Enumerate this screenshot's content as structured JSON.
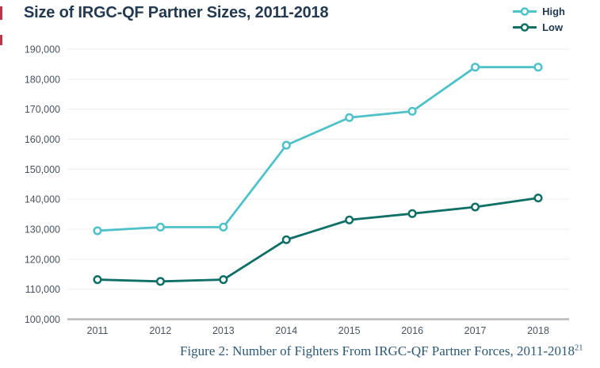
{
  "chart_data": {
    "type": "line",
    "title": "Size of IRGC-QF Partner Sizes, 2011-2018",
    "caption": "Figure 2: Number of Fighters From IRGC-QF Partner Forces, 2011-2018",
    "caption_superscript": "21",
    "categories": [
      "2011",
      "2012",
      "2013",
      "2014",
      "2015",
      "2016",
      "2017",
      "2018"
    ],
    "series": [
      {
        "name": "High",
        "color": "#4fc1c8",
        "values": [
          129500,
          130700,
          130700,
          158000,
          167200,
          169300,
          184000,
          184000
        ]
      },
      {
        "name": "Low",
        "color": "#0e6f67",
        "values": [
          113200,
          112600,
          113200,
          126500,
          133100,
          135200,
          137400,
          140400
        ]
      }
    ],
    "ylim": [
      100000,
      190000
    ],
    "ytick_step": 10000,
    "xlabel": "",
    "ylabel": "",
    "grid": true,
    "legend_position": "top-right",
    "axis_color": "#b9b9b9",
    "gridline_color": "#ececec",
    "tick_label_color": "#4a545e"
  }
}
